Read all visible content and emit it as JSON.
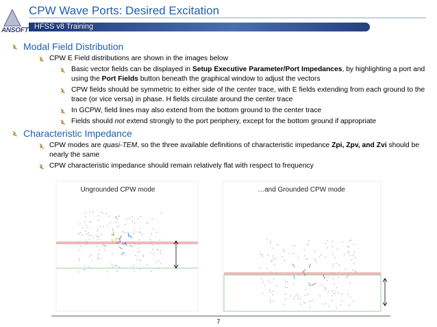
{
  "header": {
    "title": "CPW Wave Ports:  Desired Excitation",
    "logo": "ANSOFT",
    "banner": "HFSS v8 Training"
  },
  "bullets": [
    {
      "level": 1,
      "parts": [
        {
          "text": "Modal Field Distribution"
        }
      ]
    },
    {
      "level": 2,
      "parts": [
        {
          "text": "CPW E Field distributions are shown in the images below"
        }
      ]
    },
    {
      "level": 3,
      "parts": [
        {
          "text": "Basic vector fields can be displayed in "
        },
        {
          "text": "Setup Executive Parameter/Port Impedances",
          "style": "bold"
        },
        {
          "text": ", by highlighting a port and using the "
        },
        {
          "text": "Port Fields",
          "style": "bold"
        },
        {
          "text": " button beneath the graphical window to adjust the vectors"
        }
      ]
    },
    {
      "level": 3,
      "parts": [
        {
          "text": "CPW fields should be symmetric to either side of the center trace, with E fields extending from each ground to the trace (or vice versa) in phase.  H fields circulate around the center trace"
        }
      ]
    },
    {
      "level": 3,
      "parts": [
        {
          "text": "In GCPW, field lines may also extend from the bottom ground to the center trace"
        }
      ]
    },
    {
      "level": 3,
      "parts": [
        {
          "text": "Fields should "
        },
        {
          "text": "not",
          "style": "italic"
        },
        {
          "text": " extend strongly to the port periphery, except for the bottom ground if appropriate"
        }
      ]
    },
    {
      "level": 1,
      "parts": [
        {
          "text": "Characteristic Impedance"
        }
      ]
    },
    {
      "level": 2,
      "parts": [
        {
          "text": "CPW modes are "
        },
        {
          "text": "quasi-TEM",
          "style": "italic"
        },
        {
          "text": ", so the three available definitions of characteristic impedance "
        },
        {
          "text": "Zpi, Zpv, and Zvi",
          "style": "bold"
        },
        {
          "text": " should be nearly the same"
        }
      ]
    },
    {
      "level": 2,
      "parts": [
        {
          "text": "CPW characteristic impedance should remain relatively flat with respect to frequency"
        }
      ]
    }
  ],
  "images": [
    {
      "caption": "Ungrounded CPW mode"
    },
    {
      "caption": "…and Grounded CPW mode"
    }
  ],
  "footer": {
    "page": "7"
  }
}
